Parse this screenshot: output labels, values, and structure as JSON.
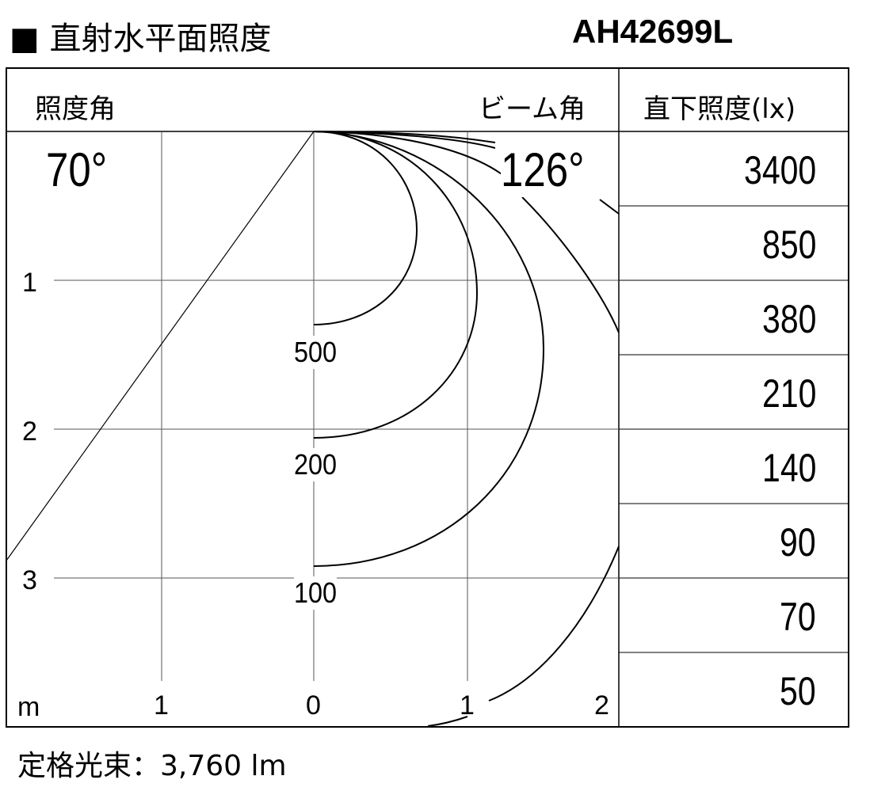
{
  "title": "■ 直射水平面照度",
  "model": "AH42699L",
  "header": {
    "angle_label": "照度角",
    "beam_label": "ビーム角",
    "illum_label": "直下照度(lx)"
  },
  "angle": "70°",
  "beam_angle": "126°",
  "illuminance_values": [
    "3400",
    "850",
    "380",
    "210",
    "140",
    "90",
    "70",
    "50"
  ],
  "x_axis": {
    "unit": "m",
    "ticks": [
      "1",
      "0",
      "1",
      "2"
    ]
  },
  "y_axis": {
    "ticks": [
      "1",
      "2",
      "3"
    ]
  },
  "isolux_labels": [
    "500",
    "200",
    "100"
  ],
  "footer": "定格光束：3,760 lm"
}
